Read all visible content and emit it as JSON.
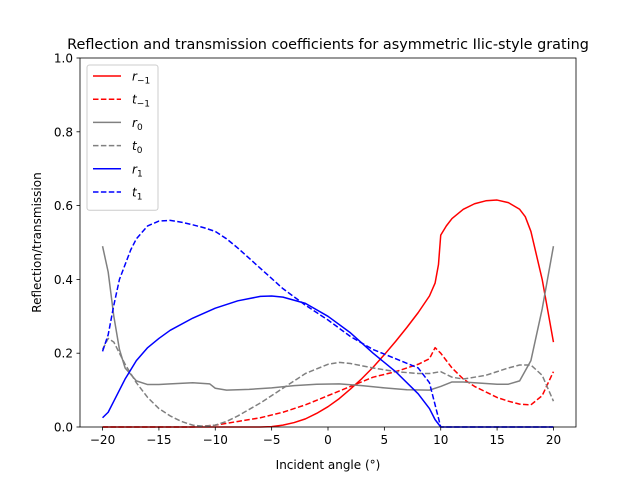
{
  "chart_data": {
    "type": "line",
    "title": "Reflection and transmission coefficients for asymmetric Ilic-style grating",
    "xlabel": "Incident angle (°)",
    "ylabel": "Reflection/transmission",
    "xlim": [
      -22,
      22
    ],
    "ylim": [
      0,
      1
    ],
    "xticks": [
      -20,
      -15,
      -10,
      -5,
      0,
      5,
      10,
      15,
      20
    ],
    "yticks": [
      0.0,
      0.2,
      0.4,
      0.6,
      0.8,
      1.0
    ],
    "xtick_labels": [
      "−20",
      "−15",
      "−10",
      "−5",
      "0",
      "5",
      "10",
      "15",
      "20"
    ],
    "ytick_labels": [
      "0.0",
      "0.2",
      "0.4",
      "0.6",
      "0.8",
      "1.0"
    ],
    "grid": false,
    "legend_position": "top-left",
    "series": [
      {
        "name": "r_{-1}",
        "legend_base": "r",
        "legend_sub": "−1",
        "color": "#ff0000",
        "dash": "solid",
        "x": [
          -20,
          -10,
          -6,
          -5,
          -4,
          -3,
          -2,
          -1,
          0,
          1,
          2,
          3,
          4,
          5,
          6,
          7,
          8,
          9,
          9.5,
          9.8,
          10,
          10.5,
          11,
          12,
          13,
          14,
          15,
          16,
          17,
          17.5,
          18,
          19,
          20
        ],
        "y": [
          0,
          0,
          0,
          0.001,
          0.005,
          0.012,
          0.022,
          0.037,
          0.055,
          0.077,
          0.103,
          0.131,
          0.162,
          0.196,
          0.232,
          0.27,
          0.31,
          0.355,
          0.39,
          0.44,
          0.52,
          0.545,
          0.565,
          0.59,
          0.605,
          0.613,
          0.615,
          0.608,
          0.59,
          0.57,
          0.53,
          0.4,
          0.23
        ]
      },
      {
        "name": "t_{-1}",
        "legend_base": "t",
        "legend_sub": "−1",
        "color": "#ff0000",
        "dash": "dashed",
        "x": [
          -20,
          -12,
          -10,
          -8,
          -6,
          -4,
          -2,
          0,
          2,
          4,
          6,
          8,
          9,
          9.5,
          10,
          11,
          12,
          13,
          14,
          15,
          16,
          17,
          18,
          19,
          20
        ],
        "y": [
          0,
          0,
          0.005,
          0.015,
          0.025,
          0.04,
          0.06,
          0.085,
          0.11,
          0.135,
          0.15,
          0.17,
          0.185,
          0.215,
          0.2,
          0.16,
          0.13,
          0.11,
          0.095,
          0.08,
          0.07,
          0.062,
          0.06,
          0.085,
          0.15
        ]
      },
      {
        "name": "r_0",
        "legend_base": "r",
        "legend_sub": "0",
        "color": "#808080",
        "dash": "solid",
        "x": [
          -20,
          -19.5,
          -19,
          -18.5,
          -18,
          -17,
          -16,
          -15,
          -14,
          -12,
          -10.5,
          -10,
          -9,
          -7,
          -5,
          -3,
          -1,
          1,
          3,
          5,
          7,
          9,
          10,
          11,
          12,
          13,
          14,
          15,
          16,
          17,
          18,
          19,
          20
        ],
        "y": [
          0.49,
          0.42,
          0.3,
          0.21,
          0.16,
          0.125,
          0.115,
          0.115,
          0.117,
          0.12,
          0.117,
          0.105,
          0.1,
          0.102,
          0.106,
          0.112,
          0.116,
          0.117,
          0.112,
          0.106,
          0.101,
          0.1,
          0.11,
          0.122,
          0.122,
          0.12,
          0.118,
          0.116,
          0.116,
          0.125,
          0.18,
          0.32,
          0.49
        ]
      },
      {
        "name": "t_0",
        "legend_base": "t",
        "legend_sub": "0",
        "color": "#808080",
        "dash": "dashed",
        "x": [
          -20,
          -19.5,
          -19,
          -18,
          -17,
          -16,
          -15,
          -14,
          -13,
          -12,
          -11,
          -10,
          -9,
          -8,
          -6,
          -4,
          -2,
          0,
          1,
          2,
          4,
          6,
          8,
          9,
          10,
          11,
          12,
          13,
          14,
          15,
          16,
          17,
          18,
          19,
          20
        ],
        "y": [
          0.21,
          0.24,
          0.23,
          0.17,
          0.12,
          0.08,
          0.05,
          0.03,
          0.015,
          0.005,
          0.002,
          0.005,
          0.015,
          0.03,
          0.065,
          0.105,
          0.145,
          0.17,
          0.175,
          0.172,
          0.16,
          0.15,
          0.145,
          0.145,
          0.15,
          0.135,
          0.13,
          0.135,
          0.14,
          0.15,
          0.16,
          0.168,
          0.168,
          0.14,
          0.07
        ]
      },
      {
        "name": "r_1",
        "legend_base": "r",
        "legend_sub": "1",
        "color": "#0000ff",
        "dash": "solid",
        "x": [
          -20,
          -19.5,
          -19,
          -18,
          -17,
          -16,
          -15,
          -14,
          -12,
          -10,
          -8,
          -6,
          -5,
          -4,
          -2,
          0,
          2,
          4,
          6,
          8,
          9,
          9.5,
          10,
          11,
          12,
          14,
          16,
          18,
          20
        ],
        "y": [
          0.025,
          0.04,
          0.07,
          0.13,
          0.18,
          0.215,
          0.24,
          0.262,
          0.295,
          0.322,
          0.342,
          0.354,
          0.355,
          0.352,
          0.335,
          0.3,
          0.255,
          0.2,
          0.15,
          0.09,
          0.05,
          0.02,
          0,
          0,
          0,
          0,
          0,
          0,
          0
        ]
      },
      {
        "name": "t_1",
        "legend_base": "t",
        "legend_sub": "1",
        "color": "#0000ff",
        "dash": "dashed",
        "x": [
          -20,
          -19.5,
          -19,
          -18.5,
          -18,
          -17.5,
          -17,
          -16,
          -15,
          -14,
          -13,
          -12,
          -11,
          -10,
          -9,
          -8,
          -6,
          -4,
          -2,
          0,
          2,
          4,
          6,
          8,
          9,
          9.5,
          10,
          11,
          12,
          14,
          16,
          18,
          20
        ],
        "y": [
          0.205,
          0.25,
          0.33,
          0.4,
          0.44,
          0.48,
          0.51,
          0.545,
          0.558,
          0.56,
          0.555,
          0.548,
          0.54,
          0.53,
          0.51,
          0.485,
          0.43,
          0.375,
          0.33,
          0.29,
          0.245,
          0.21,
          0.185,
          0.16,
          0.12,
          0.06,
          0,
          0,
          0,
          0,
          0,
          0,
          0
        ]
      }
    ]
  }
}
